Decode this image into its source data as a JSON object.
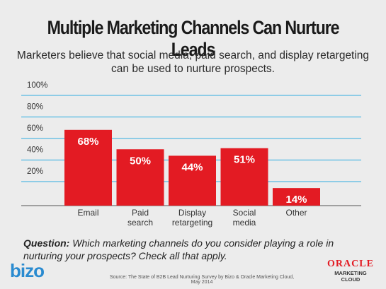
{
  "title": "Multiple Marketing Channels Can Nurture Leads",
  "subtitle": "Marketers believe that social media, paid search, and display retargeting can be used to nurture prospects.",
  "question": {
    "label": "Question:",
    "text": " Which marketing channels do you consider playing a role in nurturing your prospects? Check all that apply."
  },
  "footer": {
    "logo_left": "bizo",
    "source": "Source: The State of B2B Lead Nurturing Survey by Bizo & Oracle Marketing Cloud, May 2014",
    "logo_right_main": "ORACLE",
    "logo_right_sub1": "MARKETING",
    "logo_right_sub2": "CLOUD"
  },
  "colors": {
    "bar": "#e31b23",
    "gridline": "#6ec1e4",
    "bar_label": "#ffffff"
  },
  "chart_data": {
    "type": "bar",
    "categories": [
      "Email",
      "Paid search",
      "Display retargeting",
      "Social media",
      "Other"
    ],
    "category_lines": [
      [
        "Email"
      ],
      [
        "Paid",
        "search"
      ],
      [
        "Display",
        "retargeting"
      ],
      [
        "Social",
        "media"
      ],
      [
        "Other"
      ]
    ],
    "values": [
      68,
      50,
      44,
      51,
      14
    ],
    "data_labels": [
      "68%",
      "50%",
      "44%",
      "51%",
      "14%"
    ],
    "ylim": [
      0,
      100
    ],
    "yticks": [
      20,
      40,
      60,
      80,
      100
    ],
    "ytick_labels": [
      "20%",
      "40%",
      "60%",
      "80%",
      "100%"
    ],
    "grid": true
  }
}
